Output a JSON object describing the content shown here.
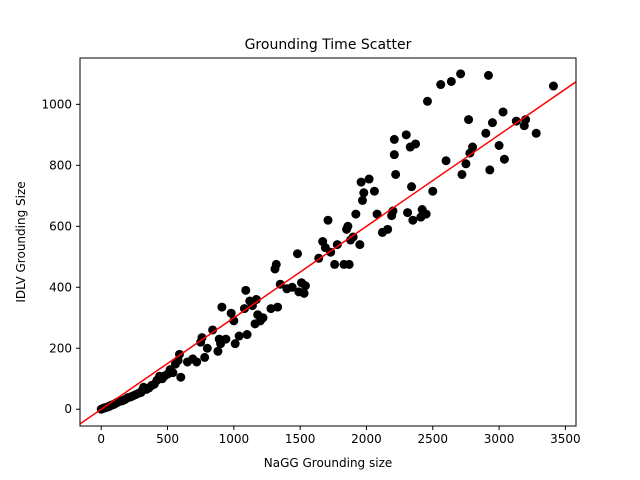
{
  "chart_data": {
    "type": "scatter",
    "title": "Grounding Time Scatter",
    "xlabel": "NaGG Grounding size",
    "ylabel": "IDLV Grounding Size",
    "xlim": [
      -160,
      3580
    ],
    "ylim": [
      -55,
      1152
    ],
    "x_ticks": [
      0,
      500,
      1000,
      1500,
      2000,
      2500,
      3000,
      3500
    ],
    "y_ticks": [
      0,
      200,
      400,
      600,
      800,
      1000
    ],
    "grid": false,
    "legend": "none",
    "reference_line": {
      "slope": 0.3,
      "intercept": 0,
      "color": "#ff0000"
    },
    "point_color": "#000000",
    "points": [
      {
        "x": 0,
        "y": 0
      },
      {
        "x": 10,
        "y": 2
      },
      {
        "x": 20,
        "y": 4
      },
      {
        "x": 30,
        "y": 5
      },
      {
        "x": 40,
        "y": 6
      },
      {
        "x": 50,
        "y": 8
      },
      {
        "x": 60,
        "y": 9
      },
      {
        "x": 70,
        "y": 12
      },
      {
        "x": 80,
        "y": 14
      },
      {
        "x": 90,
        "y": 15
      },
      {
        "x": 100,
        "y": 17
      },
      {
        "x": 110,
        "y": 20
      },
      {
        "x": 120,
        "y": 22
      },
      {
        "x": 130,
        "y": 25
      },
      {
        "x": 140,
        "y": 26
      },
      {
        "x": 160,
        "y": 28
      },
      {
        "x": 180,
        "y": 32
      },
      {
        "x": 200,
        "y": 38
      },
      {
        "x": 220,
        "y": 40
      },
      {
        "x": 240,
        "y": 44
      },
      {
        "x": 260,
        "y": 48
      },
      {
        "x": 280,
        "y": 52
      },
      {
        "x": 300,
        "y": 55
      },
      {
        "x": 310,
        "y": 62
      },
      {
        "x": 320,
        "y": 72
      },
      {
        "x": 340,
        "y": 65
      },
      {
        "x": 360,
        "y": 70
      },
      {
        "x": 380,
        "y": 78
      },
      {
        "x": 400,
        "y": 82
      },
      {
        "x": 420,
        "y": 95
      },
      {
        "x": 440,
        "y": 108
      },
      {
        "x": 460,
        "y": 100
      },
      {
        "x": 480,
        "y": 110
      },
      {
        "x": 500,
        "y": 115
      },
      {
        "x": 520,
        "y": 130
      },
      {
        "x": 540,
        "y": 120
      },
      {
        "x": 560,
        "y": 148
      },
      {
        "x": 580,
        "y": 160
      },
      {
        "x": 590,
        "y": 180
      },
      {
        "x": 600,
        "y": 105
      },
      {
        "x": 650,
        "y": 155
      },
      {
        "x": 690,
        "y": 165
      },
      {
        "x": 720,
        "y": 155
      },
      {
        "x": 750,
        "y": 220
      },
      {
        "x": 760,
        "y": 235
      },
      {
        "x": 780,
        "y": 170
      },
      {
        "x": 800,
        "y": 200
      },
      {
        "x": 840,
        "y": 260
      },
      {
        "x": 880,
        "y": 190
      },
      {
        "x": 890,
        "y": 230
      },
      {
        "x": 900,
        "y": 215
      },
      {
        "x": 910,
        "y": 335
      },
      {
        "x": 940,
        "y": 230
      },
      {
        "x": 980,
        "y": 315
      },
      {
        "x": 1000,
        "y": 290
      },
      {
        "x": 1010,
        "y": 215
      },
      {
        "x": 1040,
        "y": 240
      },
      {
        "x": 1080,
        "y": 330
      },
      {
        "x": 1090,
        "y": 390
      },
      {
        "x": 1100,
        "y": 245
      },
      {
        "x": 1120,
        "y": 355
      },
      {
        "x": 1140,
        "y": 340
      },
      {
        "x": 1160,
        "y": 280
      },
      {
        "x": 1170,
        "y": 360
      },
      {
        "x": 1180,
        "y": 310
      },
      {
        "x": 1200,
        "y": 290
      },
      {
        "x": 1220,
        "y": 300
      },
      {
        "x": 1280,
        "y": 330
      },
      {
        "x": 1310,
        "y": 460
      },
      {
        "x": 1320,
        "y": 475
      },
      {
        "x": 1330,
        "y": 335
      },
      {
        "x": 1350,
        "y": 410
      },
      {
        "x": 1400,
        "y": 395
      },
      {
        "x": 1440,
        "y": 400
      },
      {
        "x": 1480,
        "y": 510
      },
      {
        "x": 1490,
        "y": 385
      },
      {
        "x": 1510,
        "y": 415
      },
      {
        "x": 1530,
        "y": 380
      },
      {
        "x": 1540,
        "y": 405
      },
      {
        "x": 1640,
        "y": 495
      },
      {
        "x": 1670,
        "y": 550
      },
      {
        "x": 1690,
        "y": 530
      },
      {
        "x": 1710,
        "y": 620
      },
      {
        "x": 1730,
        "y": 515
      },
      {
        "x": 1760,
        "y": 475
      },
      {
        "x": 1780,
        "y": 540
      },
      {
        "x": 1830,
        "y": 475
      },
      {
        "x": 1850,
        "y": 590
      },
      {
        "x": 1860,
        "y": 600
      },
      {
        "x": 1870,
        "y": 475
      },
      {
        "x": 1880,
        "y": 555
      },
      {
        "x": 1900,
        "y": 565
      },
      {
        "x": 1920,
        "y": 640
      },
      {
        "x": 1950,
        "y": 540
      },
      {
        "x": 1960,
        "y": 745
      },
      {
        "x": 1970,
        "y": 685
      },
      {
        "x": 1980,
        "y": 710
      },
      {
        "x": 2020,
        "y": 755
      },
      {
        "x": 2060,
        "y": 715
      },
      {
        "x": 2080,
        "y": 640
      },
      {
        "x": 2120,
        "y": 580
      },
      {
        "x": 2160,
        "y": 590
      },
      {
        "x": 2190,
        "y": 635
      },
      {
        "x": 2200,
        "y": 650
      },
      {
        "x": 2210,
        "y": 835
      },
      {
        "x": 2210,
        "y": 885
      },
      {
        "x": 2220,
        "y": 770
      },
      {
        "x": 2300,
        "y": 900
      },
      {
        "x": 2310,
        "y": 645
      },
      {
        "x": 2330,
        "y": 860
      },
      {
        "x": 2340,
        "y": 730
      },
      {
        "x": 2350,
        "y": 620
      },
      {
        "x": 2370,
        "y": 870
      },
      {
        "x": 2410,
        "y": 630
      },
      {
        "x": 2420,
        "y": 655
      },
      {
        "x": 2450,
        "y": 640
      },
      {
        "x": 2460,
        "y": 1010
      },
      {
        "x": 2500,
        "y": 715
      },
      {
        "x": 2560,
        "y": 1065
      },
      {
        "x": 2600,
        "y": 815
      },
      {
        "x": 2640,
        "y": 1075
      },
      {
        "x": 2710,
        "y": 1100
      },
      {
        "x": 2720,
        "y": 770
      },
      {
        "x": 2750,
        "y": 805
      },
      {
        "x": 2770,
        "y": 950
      },
      {
        "x": 2780,
        "y": 840
      },
      {
        "x": 2800,
        "y": 860
      },
      {
        "x": 2900,
        "y": 905
      },
      {
        "x": 2920,
        "y": 1095
      },
      {
        "x": 2930,
        "y": 785
      },
      {
        "x": 2950,
        "y": 940
      },
      {
        "x": 3000,
        "y": 865
      },
      {
        "x": 3030,
        "y": 975
      },
      {
        "x": 3040,
        "y": 820
      },
      {
        "x": 3130,
        "y": 945
      },
      {
        "x": 3190,
        "y": 930
      },
      {
        "x": 3200,
        "y": 950
      },
      {
        "x": 3280,
        "y": 905
      },
      {
        "x": 3410,
        "y": 1060
      }
    ]
  }
}
